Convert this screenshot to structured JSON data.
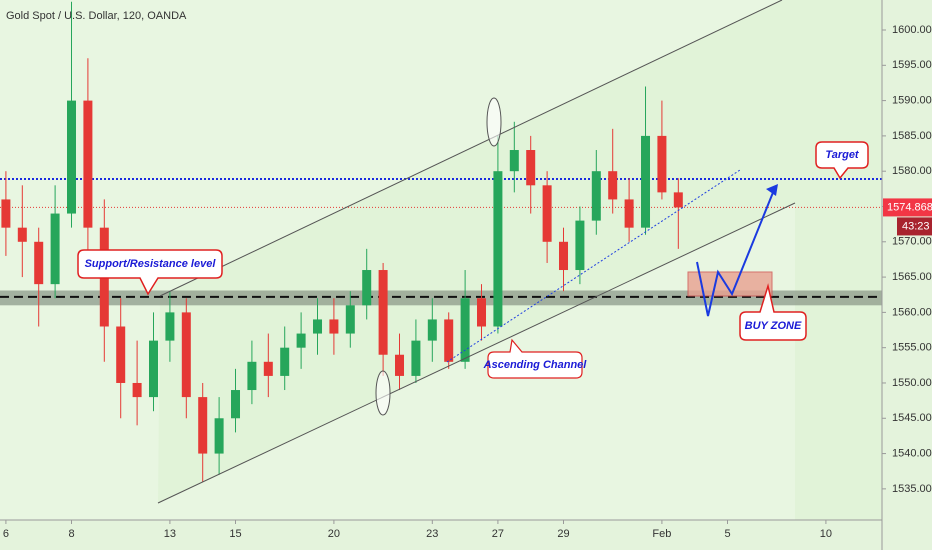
{
  "chart_data": {
    "type": "candlestick",
    "title": "Gold Spot / U.S. Dollar, 120, OANDA",
    "x": [
      0,
      0.5,
      1,
      1.5,
      2,
      2.5,
      3,
      3.5,
      4,
      4.5,
      5,
      5.5,
      6,
      6.5,
      7,
      7.5,
      8,
      8.5,
      9,
      9.5,
      10,
      10.5,
      11,
      11.5,
      12,
      12.5,
      13,
      13.5,
      14,
      14.5,
      15,
      15.5,
      16,
      16.5,
      17,
      17.5,
      18,
      18.5,
      19,
      19.5,
      20,
      20.5
    ],
    "open": [
      1576,
      1572,
      1570,
      1564,
      1574,
      1590,
      1572,
      1558,
      1550,
      1548,
      1556,
      1560,
      1548,
      1540,
      1545,
      1549,
      1553,
      1551,
      1555,
      1557,
      1559,
      1557,
      1561,
      1566,
      1554,
      1551,
      1556,
      1559,
      1553,
      1562,
      1558,
      1580,
      1583,
      1578,
      1570,
      1566,
      1573,
      1580,
      1576,
      1572,
      1585,
      1577
    ],
    "high": [
      1580,
      1578,
      1572,
      1578,
      1604,
      1596,
      1576,
      1562,
      1556,
      1560,
      1563,
      1562,
      1550,
      1548,
      1552,
      1556,
      1557,
      1558,
      1560,
      1562,
      1562,
      1563,
      1569,
      1567,
      1557,
      1559,
      1562,
      1560,
      1566,
      1564,
      1585,
      1587,
      1585,
      1580,
      1572,
      1575,
      1583,
      1586,
      1579,
      1592,
      1590,
      1579
    ],
    "low": [
      1568,
      1565,
      1558,
      1562,
      1572,
      1568,
      1553,
      1545,
      1544,
      1546,
      1553,
      1545,
      1536,
      1537,
      1543,
      1547,
      1548,
      1549,
      1552,
      1554,
      1554,
      1555,
      1559,
      1551,
      1549,
      1550,
      1553,
      1552,
      1552,
      1556,
      1557,
      1577,
      1574,
      1567,
      1563,
      1564,
      1571,
      1574,
      1570,
      1571,
      1576,
      1569
    ],
    "close": [
      1572,
      1570,
      1564,
      1574,
      1590,
      1572,
      1558,
      1550,
      1548,
      1556,
      1560,
      1548,
      1540,
      1545,
      1549,
      1553,
      1551,
      1555,
      1557,
      1559,
      1557,
      1561,
      1566,
      1554,
      1551,
      1556,
      1559,
      1553,
      1562,
      1558,
      1580,
      1583,
      1578,
      1570,
      1566,
      1573,
      1580,
      1576,
      1572,
      1585,
      1577,
      1574.868
    ],
    "up_color": "#26a65b",
    "down_color": "#e53935",
    "xlim": [
      -0.18,
      26.71
    ],
    "ylim": [
      1530.59,
      1604.25
    ],
    "xticks": [
      {
        "value": 0,
        "label": "6"
      },
      {
        "value": 2,
        "label": "8"
      },
      {
        "value": 5,
        "label": "13"
      },
      {
        "value": 7,
        "label": "15"
      },
      {
        "value": 10,
        "label": "20"
      },
      {
        "value": 13,
        "label": "23"
      },
      {
        "value": 15,
        "label": "27"
      },
      {
        "value": 17,
        "label": "29"
      },
      {
        "value": 20,
        "label": "Feb"
      },
      {
        "value": 22,
        "label": "5"
      },
      {
        "value": 25,
        "label": "10"
      }
    ],
    "yticks": [
      {
        "value": 1535,
        "label": "1535.000"
      },
      {
        "value": 1540,
        "label": "1540.000"
      },
      {
        "value": 1545,
        "label": "1545.000"
      },
      {
        "value": 1550,
        "label": "1550.000"
      },
      {
        "value": 1555,
        "label": "1555.000"
      },
      {
        "value": 1560,
        "label": "1560.000"
      },
      {
        "value": 1565,
        "label": "1565.000"
      },
      {
        "value": 1570,
        "label": "1570.000"
      },
      {
        "value": 1575,
        "label": "1575.000"
      },
      {
        "value": 1580,
        "label": "1580.000"
      },
      {
        "value": 1585,
        "label": "1585.000"
      },
      {
        "value": 1590,
        "label": "1590.000"
      },
      {
        "value": 1595,
        "label": "1595.000"
      },
      {
        "value": 1600,
        "label": "1600.000"
      }
    ],
    "support_zone": [
      1561,
      1563.1
    ],
    "support_level": 1562.2,
    "target_level": 1578.9,
    "last_price": 1574.868,
    "countdown": "43:23",
    "annotations": [
      "Support/Resistance level",
      "Target",
      "BUY ZONE",
      "Ascending Channel"
    ]
  }
}
